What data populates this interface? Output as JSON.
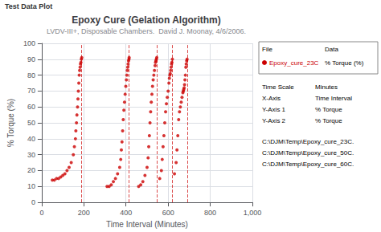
{
  "chart_data": {
    "type": "scatter",
    "window_title": "Test Data Plot",
    "title": "Epoxy Cure (Gelation Algorithm)",
    "subtitle": "LVDV-III+, Disposable Chambers.  David J. Moonay, 4/6/2006.",
    "xlabel": "Time Interval (Minutes)",
    "ylabel": "% Torque (%)",
    "xlim": [
      0,
      1000
    ],
    "ylim": [
      0,
      100
    ],
    "xticks": [
      0,
      200,
      400,
      600,
      800,
      1000
    ],
    "yticks": [
      0,
      10,
      20,
      30,
      40,
      50,
      60,
      70,
      80,
      90,
      100
    ],
    "grid": true,
    "vlines": [
      190,
      415,
      546,
      620,
      690
    ],
    "legend_headers": [
      "File",
      "Data"
    ],
    "legend_data_label": "% Torque (%)",
    "sidebar_rows": [
      [
        "Time Scale",
        "Minutes"
      ],
      [
        "X-Axis",
        "Time Interval"
      ],
      [
        "Y-Axis 1",
        "% Torque"
      ],
      [
        "Y-Axis 2",
        "% Torque"
      ]
    ],
    "file_list": [
      "C:\\DJM\\Temp\\Epoxy_cure_23C.",
      "C:\\DJM\\Temp\\Epoxy_cure_50C.",
      "C:\\DJM\\Temp\\Epoxy_cure_60C."
    ],
    "series": [
      {
        "name": "Epoxy_cure_23C",
        "color": "#cc0000",
        "x": [
          50,
          60,
          70,
          80,
          90,
          100,
          110,
          120,
          130,
          140,
          150,
          155,
          160,
          162,
          165,
          167,
          170,
          172,
          174,
          176,
          178,
          180,
          182,
          184,
          186,
          188,
          190
        ],
        "values": [
          14,
          14,
          15,
          15,
          16,
          17,
          18,
          20,
          22,
          25,
          30,
          35,
          40,
          45,
          50,
          55,
          60,
          65,
          70,
          75,
          80,
          83,
          85,
          87,
          88,
          90,
          91
        ]
      },
      {
        "color": "#cc0000",
        "x": [
          310,
          320,
          330,
          340,
          350,
          360,
          370,
          375,
          378,
          381,
          384,
          387,
          390,
          393,
          396,
          399,
          402,
          404,
          406,
          408,
          410,
          412,
          414,
          415
        ],
        "values": [
          10,
          10,
          11,
          13,
          15,
          18,
          22,
          27,
          33,
          38,
          45,
          52,
          58,
          63,
          68,
          73,
          77,
          80,
          83,
          85,
          87,
          89,
          90,
          91
        ]
      },
      {
        "color": "#cc0000",
        "x": [
          460,
          470,
          480,
          490,
          500,
          505,
          508,
          511,
          514,
          517,
          520,
          523,
          526,
          529,
          532,
          535,
          538,
          540,
          542,
          544,
          546
        ],
        "values": [
          10,
          11,
          13,
          17,
          22,
          28,
          35,
          42,
          50,
          57,
          63,
          68,
          73,
          77,
          80,
          83,
          86,
          88,
          89,
          90,
          91
        ]
      },
      {
        "color": "#cc0000",
        "x": [
          560,
          568,
          572,
          576,
          580,
          584,
          588,
          592,
          596,
          600,
          604,
          606,
          608,
          610,
          612,
          614,
          616,
          618,
          620
        ],
        "values": [
          15,
          20,
          27,
          35,
          42,
          50,
          57,
          62,
          66,
          70,
          75,
          78,
          80,
          81,
          83,
          85,
          87,
          88,
          90
        ]
      },
      {
        "color": "#cc0000",
        "x": [
          630,
          638,
          642,
          646,
          650,
          654,
          658,
          662,
          666,
          670,
          672,
          674,
          676,
          678,
          680,
          682,
          684,
          686,
          688,
          690
        ],
        "values": [
          18,
          25,
          33,
          42,
          52,
          57,
          60,
          63,
          66,
          69,
          70,
          71,
          72,
          74,
          77,
          80,
          85,
          87,
          89,
          90
        ]
      }
    ]
  }
}
